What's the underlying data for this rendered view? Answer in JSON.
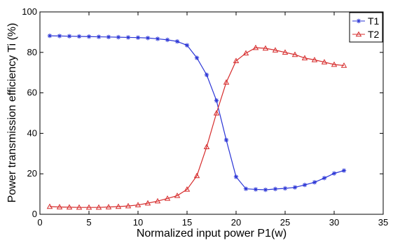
{
  "chart_data": {
    "type": "line",
    "xlabel": "Normalized input power P1(w)",
    "ylabel": "Power transmission efficiency Ti (%)",
    "xlim": [
      0,
      35
    ],
    "ylim": [
      0,
      100
    ],
    "xticks": [
      0,
      5,
      10,
      15,
      20,
      25,
      30,
      35
    ],
    "yticks": [
      0,
      20,
      40,
      60,
      80,
      100
    ],
    "x_tick_labels": [
      "0",
      "5",
      "10",
      "15",
      "20",
      "25",
      "30",
      "35"
    ],
    "y_tick_labels": [
      "0",
      "20",
      "40",
      "60",
      "80",
      "100"
    ],
    "grid": false,
    "legend_position": "top-right",
    "x": [
      1,
      2,
      3,
      4,
      5,
      6,
      7,
      8,
      9,
      10,
      11,
      12,
      13,
      14,
      15,
      16,
      17,
      18,
      19,
      20,
      21,
      22,
      23,
      24,
      25,
      26,
      27,
      28,
      29,
      30,
      31
    ],
    "series": [
      {
        "name": "T1",
        "color": "#2b35d6",
        "marker": "star",
        "values": [
          88.2,
          88.1,
          88.0,
          87.9,
          87.8,
          87.7,
          87.6,
          87.5,
          87.4,
          87.3,
          87.1,
          86.7,
          86.2,
          85.4,
          83.5,
          77.3,
          68.9,
          56.2,
          36.7,
          18.5,
          12.6,
          12.3,
          12.1,
          12.5,
          12.8,
          13.3,
          14.5,
          15.8,
          17.9,
          20.2,
          21.6
        ]
      },
      {
        "name": "T2",
        "color": "#d62b2b",
        "marker": "triangle",
        "values": [
          3.8,
          3.6,
          3.5,
          3.4,
          3.4,
          3.4,
          3.6,
          3.8,
          4.1,
          4.6,
          5.5,
          6.5,
          7.8,
          9.2,
          12.3,
          19.0,
          33.3,
          50.0,
          65.2,
          75.8,
          79.6,
          82.3,
          82.0,
          81.1,
          80.0,
          78.9,
          77.2,
          76.3,
          75.2,
          74.0,
          73.5
        ]
      }
    ]
  }
}
